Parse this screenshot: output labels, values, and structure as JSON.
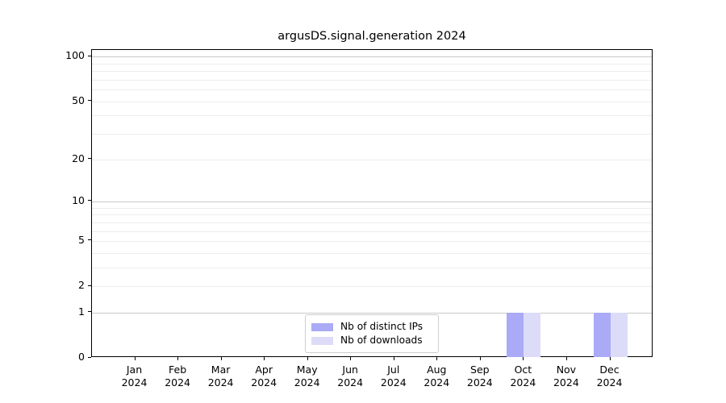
{
  "chart_data": {
    "type": "bar",
    "title": "argusDS.signal.generation 2024",
    "categories": [
      "Jan",
      "Feb",
      "Mar",
      "Apr",
      "May",
      "Jun",
      "Jul",
      "Aug",
      "Sep",
      "Oct",
      "Nov",
      "Dec"
    ],
    "x_tick_second_line": "2024",
    "series": [
      {
        "name": "Nb of distinct IPs",
        "color": "#aaaaf7",
        "values": [
          0,
          0,
          0,
          0,
          0,
          0,
          0,
          0,
          0,
          1,
          0,
          1
        ]
      },
      {
        "name": "Nb of downloads",
        "color": "#dcdcf9",
        "values": [
          0,
          0,
          0,
          0,
          0,
          0,
          0,
          0,
          0,
          1,
          0,
          1
        ]
      }
    ],
    "xlabel": "",
    "ylabel": "",
    "y_scale": "symlog-log1p",
    "y_ticks": [
      0,
      1,
      2,
      5,
      10,
      20,
      50,
      100
    ],
    "ylim": [
      0,
      111
    ],
    "grid": {
      "major_lines": [
        1,
        10,
        100
      ],
      "minor_lines": [
        2,
        3,
        4,
        5,
        6,
        7,
        8,
        9,
        20,
        30,
        40,
        50,
        60,
        70,
        80,
        90
      ],
      "major_color": "#c9c9c9",
      "minor_color": "#ececec"
    },
    "legend": {
      "position": "lower center",
      "entries": [
        "Nb of distinct IPs",
        "Nb of downloads"
      ]
    },
    "colors": {
      "bar_distinct_ips": "#aaaaf7",
      "bar_downloads": "#dcdcf9",
      "axis": "#000000",
      "background": "#ffffff"
    }
  }
}
